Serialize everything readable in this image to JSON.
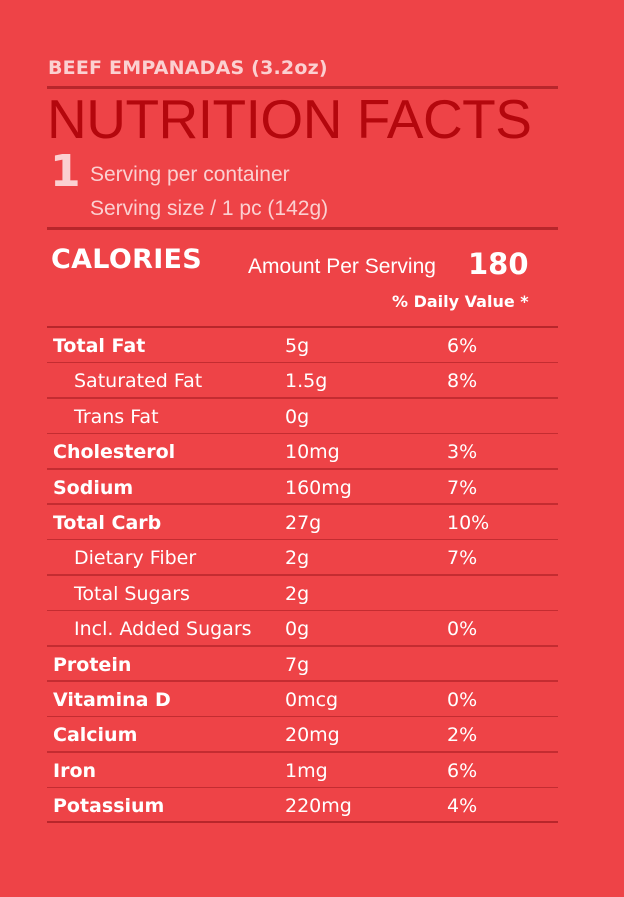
{
  "product": "BEEF EMPANADAS (3.2oz)",
  "title": "NUTRITION FACTS",
  "serving": {
    "count": "1",
    "per_container": "Serving per container",
    "size": "Serving size / 1 pc (142g)"
  },
  "calories": {
    "label": "CALORIES",
    "amount_label": "Amount Per Serving",
    "value": "180",
    "dv_label": "% Daily Value *"
  },
  "nutrients": [
    {
      "name": "Total Fat",
      "amount": "5g",
      "dv": "6%",
      "sub": false
    },
    {
      "name": "Saturated Fat",
      "amount": "1.5g",
      "dv": "8%",
      "sub": true
    },
    {
      "name": "Trans Fat",
      "amount": "0g",
      "dv": "",
      "sub": true
    },
    {
      "name": "Cholesterol",
      "amount": "10mg",
      "dv": "3%",
      "sub": false
    },
    {
      "name": "Sodium",
      "amount": "160mg",
      "dv": "7%",
      "sub": false
    },
    {
      "name": "Total Carb",
      "amount": "27g",
      "dv": "10%",
      "sub": false
    },
    {
      "name": "Dietary Fiber",
      "amount": "2g",
      "dv": "7%",
      "sub": true
    },
    {
      "name": "Total Sugars",
      "amount": "2g",
      "dv": "",
      "sub": true
    },
    {
      "name": "Incl. Added Sugars",
      "amount": "0g",
      "dv": "0%",
      "sub": true
    },
    {
      "name": "Protein",
      "amount": "7g",
      "dv": "",
      "sub": false
    },
    {
      "name": "Vitamina D",
      "amount": "0mcg",
      "dv": "0%",
      "sub": false
    },
    {
      "name": "Calcium",
      "amount": "20mg",
      "dv": "2%",
      "sub": false
    },
    {
      "name": "Iron",
      "amount": "1mg",
      "dv": "6%",
      "sub": false
    },
    {
      "name": "Potassium",
      "amount": "220mg",
      "dv": "4%",
      "sub": false
    }
  ],
  "colors": {
    "background": "#ee4347",
    "title": "#b4070d",
    "rule": "#b8262b",
    "muted_text": "#fbd0d1",
    "text": "#ffffff"
  }
}
